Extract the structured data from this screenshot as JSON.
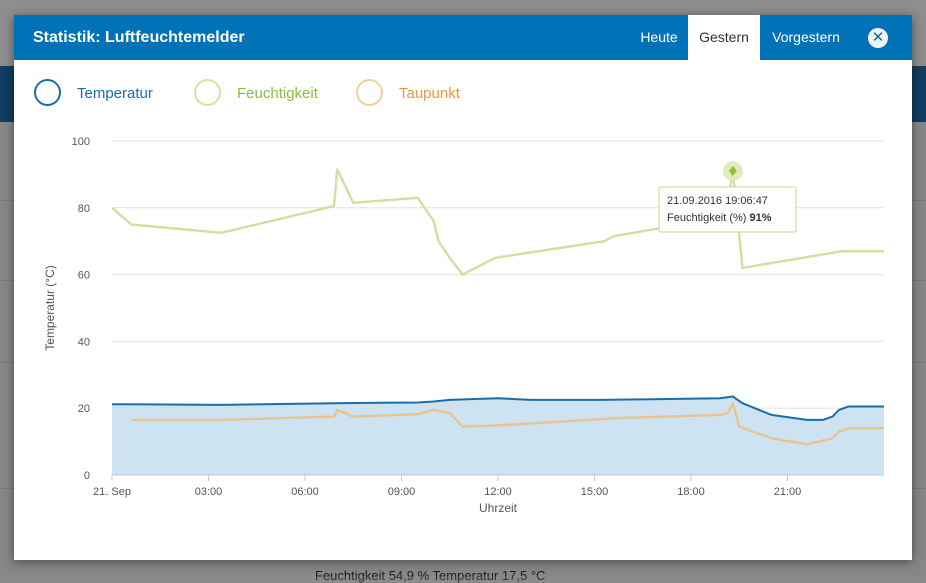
{
  "modal": {
    "title": "Statistik: Luftfeuchtemelder",
    "tabs": [
      {
        "label": "Heute",
        "active": false
      },
      {
        "label": "Gestern",
        "active": true
      },
      {
        "label": "Vorgestern",
        "active": false
      }
    ],
    "close_icon": "close-icon",
    "close_glyph": "✕"
  },
  "legend": [
    {
      "label": "Temperatur",
      "color": "#1a6ea8"
    },
    {
      "label": "Feuchtigkeit",
      "color": "#8cbd3c"
    },
    {
      "label": "Taupunkt",
      "color": "#e39a3e"
    }
  ],
  "tooltip": {
    "time": "21.09.2016 19:06:47",
    "series_label": "Feuchtigkeit (%)",
    "value": "91%"
  },
  "background_fragments": {
    "bottom_status": "Feuchtigkeit 54,9 %   Temperatur 17,5 °C"
  },
  "chart_data": {
    "type": "line",
    "ylabel": "Temperatur (°C)",
    "xlabel": "Uhrzeit",
    "ylim": [
      0,
      100
    ],
    "yticks": [
      0,
      20,
      40,
      60,
      80,
      100
    ],
    "xlim_hours": [
      0,
      24
    ],
    "xticks": [
      {
        "h": 0,
        "label": "21. Sep"
      },
      {
        "h": 3,
        "label": "03:00"
      },
      {
        "h": 6,
        "label": "06:00"
      },
      {
        "h": 9,
        "label": "09:00"
      },
      {
        "h": 12,
        "label": "12:00"
      },
      {
        "h": 15,
        "label": "15:00"
      },
      {
        "h": 18,
        "label": "18:00"
      },
      {
        "h": 21,
        "label": "21:00"
      }
    ],
    "grid": true,
    "series": [
      {
        "name": "Feuchtigkeit",
        "color": "#cfe0a0",
        "fill": false,
        "points": [
          [
            0,
            80
          ],
          [
            0.6,
            75
          ],
          [
            3.4,
            72.5
          ],
          [
            6.9,
            80.5
          ],
          [
            7.0,
            91.5
          ],
          [
            7.5,
            81.5
          ],
          [
            9.5,
            83
          ],
          [
            10.0,
            76
          ],
          [
            10.15,
            70
          ],
          [
            10.5,
            65
          ],
          [
            10.9,
            60
          ],
          [
            11.9,
            65
          ],
          [
            15.3,
            70
          ],
          [
            15.6,
            71.5
          ],
          [
            18.9,
            77
          ],
          [
            19.15,
            82
          ],
          [
            19.3,
            91
          ],
          [
            19.6,
            62
          ],
          [
            22.7,
            67
          ],
          [
            24,
            67
          ]
        ]
      },
      {
        "name": "Taupunkt",
        "color": "#e8c48e",
        "fill": false,
        "points": [
          [
            0.6,
            16.5
          ],
          [
            3.4,
            16.5
          ],
          [
            6.9,
            17.5
          ],
          [
            7.0,
            19.5
          ],
          [
            7.5,
            17.5
          ],
          [
            9.5,
            18.2
          ],
          [
            10.0,
            19.5
          ],
          [
            10.5,
            18.5
          ],
          [
            10.9,
            14.5
          ],
          [
            11.9,
            14.8
          ],
          [
            15.3,
            16.8
          ],
          [
            15.6,
            17
          ],
          [
            18.9,
            18
          ],
          [
            19.15,
            18.5
          ],
          [
            19.3,
            21.5
          ],
          [
            19.5,
            14.5
          ],
          [
            20.5,
            11
          ],
          [
            21.6,
            9.2
          ],
          [
            22.1,
            10.3
          ],
          [
            22.4,
            11
          ],
          [
            22.6,
            13
          ],
          [
            22.9,
            14
          ],
          [
            24,
            14
          ]
        ]
      },
      {
        "name": "Temperatur",
        "color": "#1a6ea8",
        "fill": true,
        "fill_color": "#cde3f1",
        "points": [
          [
            0,
            21.2
          ],
          [
            3.4,
            21
          ],
          [
            6.9,
            21.5
          ],
          [
            9.5,
            21.7
          ],
          [
            10.0,
            22
          ],
          [
            10.5,
            22.5
          ],
          [
            12.0,
            23
          ],
          [
            13.0,
            22.5
          ],
          [
            15.3,
            22.5
          ],
          [
            18.9,
            23
          ],
          [
            19.3,
            23.5
          ],
          [
            19.6,
            21.5
          ],
          [
            20.5,
            18
          ],
          [
            21.6,
            16.5
          ],
          [
            22.1,
            16.5
          ],
          [
            22.4,
            17.5
          ],
          [
            22.6,
            19.5
          ],
          [
            22.9,
            20.5
          ],
          [
            24,
            20.5
          ]
        ]
      }
    ],
    "highlight": {
      "h": 19.3,
      "y": 91
    }
  }
}
